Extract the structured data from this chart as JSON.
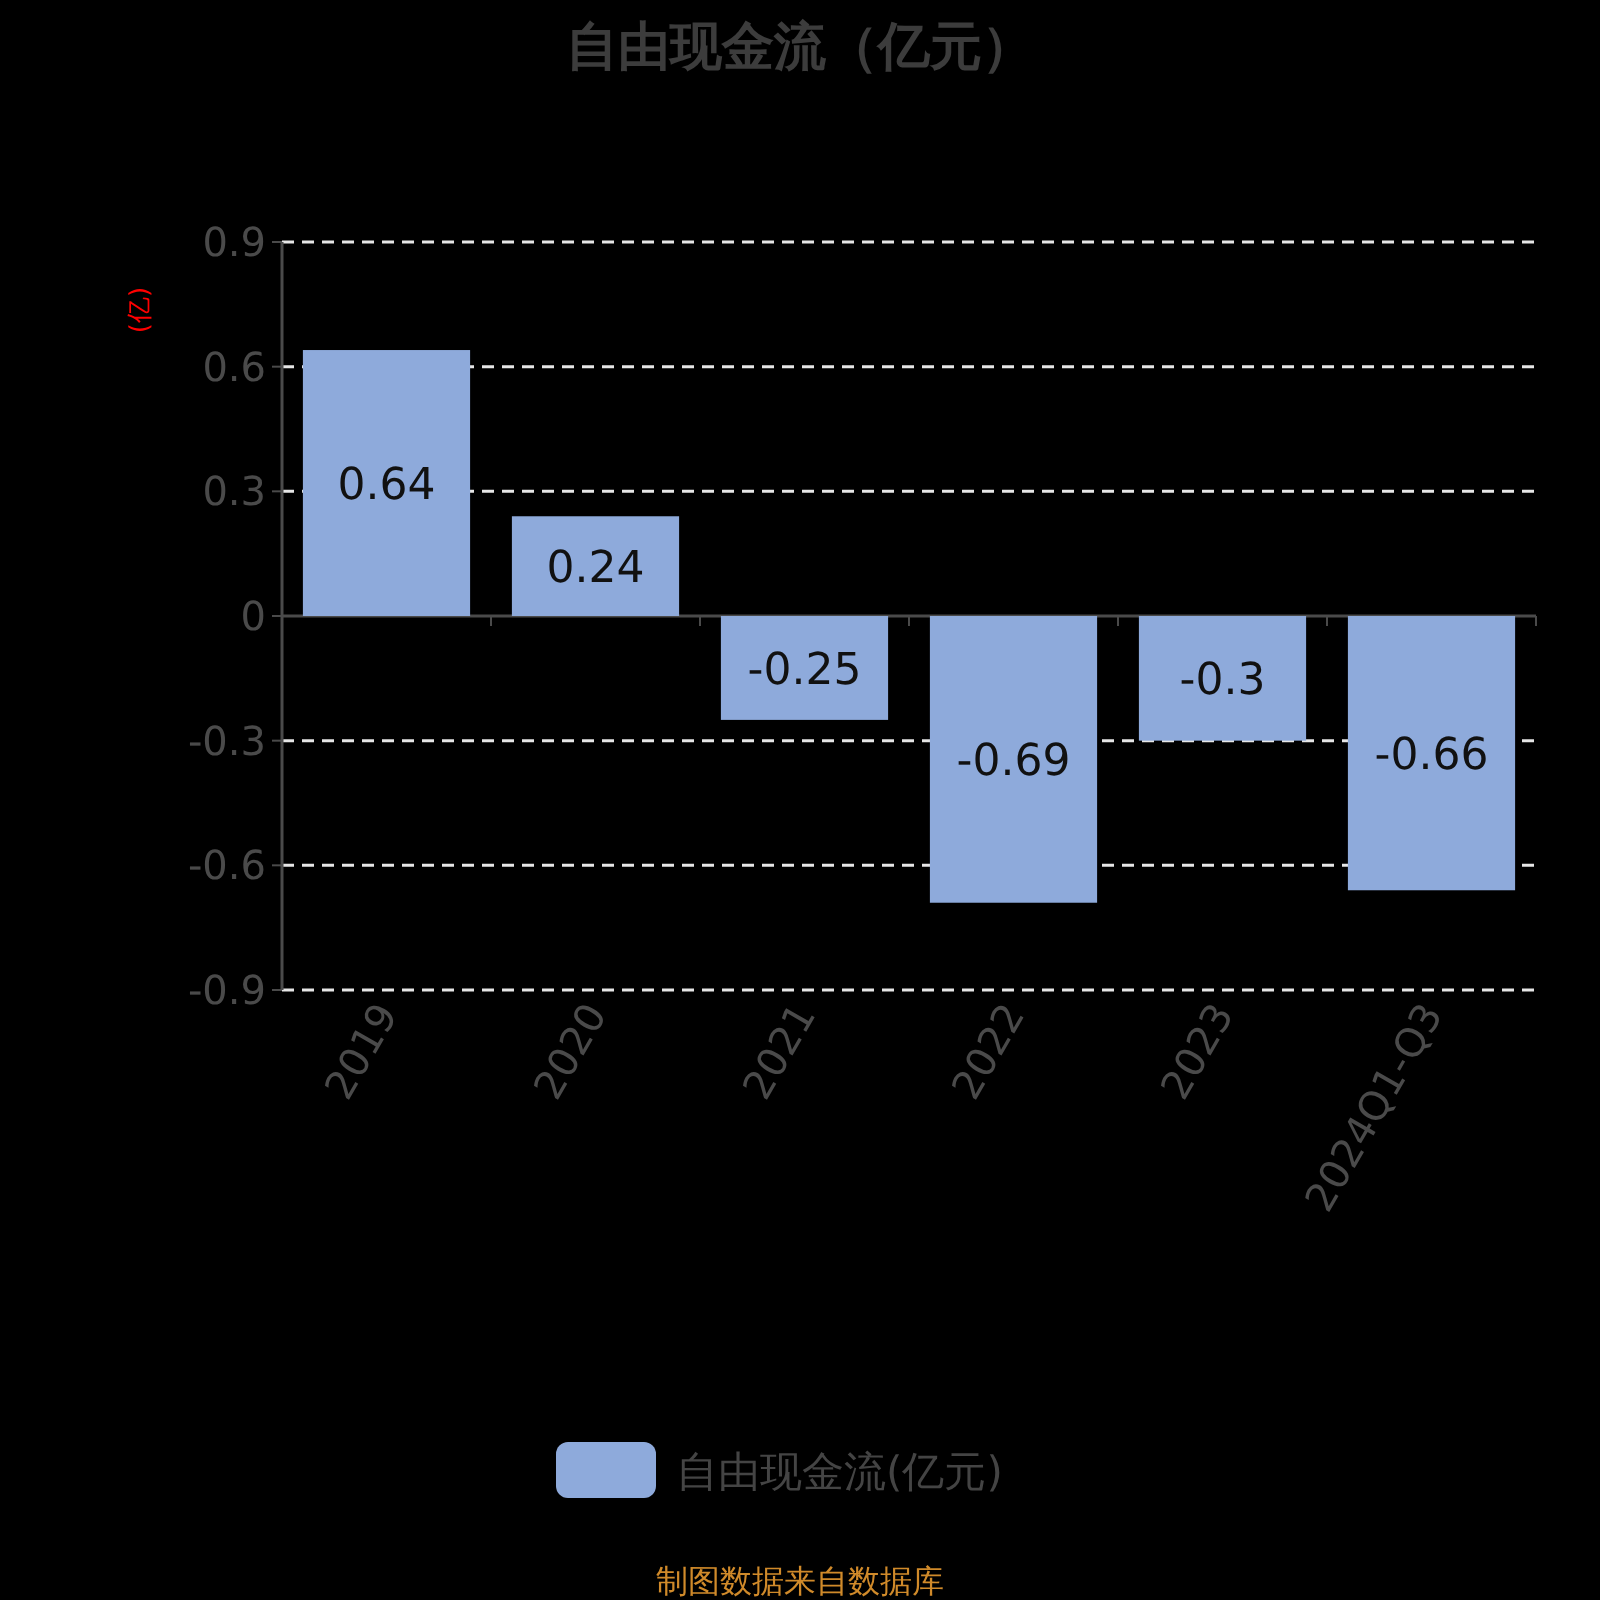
{
  "chart_data": {
    "type": "bar",
    "title": "自由现金流（亿元）",
    "ylabel": "(亿)",
    "categories": [
      "2019",
      "2020",
      "2021",
      "2022",
      "2023",
      "2024Q1-Q3"
    ],
    "series": [
      {
        "name": "自由现金流(亿元)",
        "color": "#8eaadb",
        "values": [
          0.64,
          0.24,
          -0.25,
          -0.69,
          -0.3,
          -0.66
        ]
      }
    ],
    "ylim": [
      -0.9,
      0.9
    ],
    "yticks": [
      -0.9,
      -0.6,
      -0.3,
      0,
      0.3,
      0.6,
      0.9
    ],
    "grid": "y",
    "legend": "bottom",
    "data_labels": true,
    "annotations": [
      "制图数据来自数据库"
    ]
  }
}
